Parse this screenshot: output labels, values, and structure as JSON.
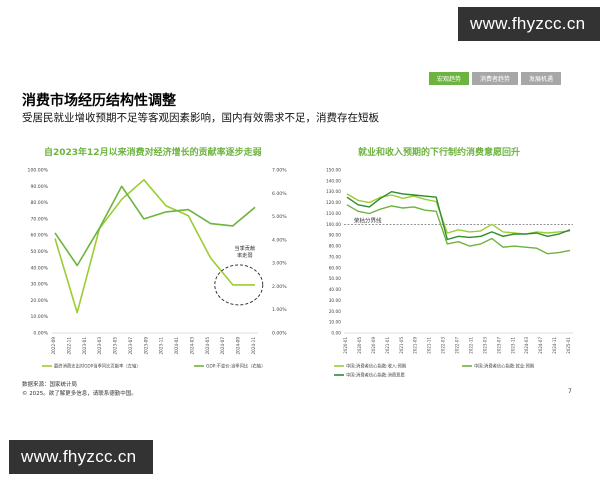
{
  "watermark": {
    "text": "www.fhyzcc.cn"
  },
  "tabs": [
    {
      "label": "宏观趋势",
      "active": true
    },
    {
      "label": "消费者趋势",
      "active": false
    },
    {
      "label": "发展机遇",
      "active": false
    }
  ],
  "header": {
    "title": "消费市场经历结构性调整",
    "subtitle": "受居民就业增收预期不足等客观因素影响，国内有效需求不足，消费存在短板"
  },
  "footer": {
    "source": "数据来源：国家统计局",
    "copyright": "© 2025。欲了解更多信息，请联系德勤中国。",
    "page": "7"
  },
  "colors": {
    "light_green": "#9acd32",
    "mid_green": "#6db33f",
    "dark_green": "#2e8b2e",
    "axis": "#bbbbbb",
    "text": "#444444"
  },
  "chart_data": [
    {
      "type": "line",
      "title": "自2023年12月以来消费对经济增长的贡献率逐步走弱",
      "x": [
        "2022-09",
        "2022-12",
        "2023-03",
        "2023-06",
        "2023-09",
        "2023-12",
        "2024-03",
        "2024-06",
        "2024-09",
        "2024-12"
      ],
      "x_tick_labels": [
        "2022-09",
        "2022-11",
        "2023-01",
        "2023-03",
        "2023-05",
        "2023-07",
        "2023-09",
        "2023-11",
        "2024-01",
        "2024-03",
        "2024-05",
        "2024-07",
        "2024-09",
        "2024-11"
      ],
      "y_left_ticks": [
        "0.00%",
        "10.00%",
        "20.00%",
        "30.00%",
        "40.00%",
        "50.00%",
        "60.00%",
        "70.00%",
        "80.00%",
        "90.00%",
        "100.00%"
      ],
      "y_right_ticks": [
        "0.00%",
        "1.00%",
        "2.00%",
        "3.00%",
        "4.00%",
        "5.00%",
        "6.00%",
        "7.00%"
      ],
      "ylim_left": [
        0,
        100
      ],
      "ylim_right": [
        0,
        7
      ],
      "series": [
        {
          "name": "最终消费支出对GDP当季同比贡献率（左轴）",
          "axis": "left",
          "color": "#9acd32",
          "values": [
            58.0,
            12.5,
            64.0,
            82.0,
            94.0,
            78.0,
            72.0,
            46.0,
            29.5,
            29.5
          ]
        },
        {
          "name": "GDP:不变价:当季同比（右轴）",
          "axis": "right",
          "color": "#6db33f",
          "values": [
            4.3,
            2.9,
            4.5,
            6.3,
            4.9,
            5.2,
            5.3,
            4.7,
            4.6,
            5.4
          ]
        }
      ],
      "annotation": "当季贡献\n率走弱"
    },
    {
      "type": "line",
      "title": "就业和收入预期的下行制约消费意愿回升",
      "x": [
        "2020-01",
        "2020-04",
        "2020-07",
        "2020-10",
        "2021-01",
        "2021-04",
        "2021-07",
        "2021-10",
        "2022-01",
        "2022-04",
        "2022-07",
        "2022-10",
        "2023-01",
        "2023-04",
        "2023-07",
        "2023-10",
        "2024-01",
        "2024-04",
        "2024-07",
        "2024-10",
        "2025-01"
      ],
      "x_tick_labels": [
        "2020-01",
        "2020-05",
        "2020-09",
        "2021-01",
        "2021-05",
        "2021-09",
        "2021-11",
        "2022-03",
        "2022-07",
        "2022-11",
        "2023-03",
        "2023-07",
        "2023-11",
        "2024-03",
        "2024-07",
        "2024-11",
        "2025-01"
      ],
      "y_ticks": [
        "0.00",
        "10.00",
        "20.00",
        "30.00",
        "40.00",
        "50.00",
        "60.00",
        "70.00",
        "80.00",
        "90.00",
        "100.00",
        "110.00",
        "120.00",
        "130.00",
        "140.00",
        "150.00"
      ],
      "ylim": [
        0,
        150
      ],
      "reference_line": {
        "value": 100,
        "label": "荣枯分界线"
      },
      "series": [
        {
          "name": "中国:消费者信心指数:收入:预期",
          "color": "#9acd32",
          "values": [
            128,
            122,
            120,
            125,
            127,
            124,
            126,
            123,
            121,
            92,
            95,
            93,
            94,
            100,
            93,
            92,
            91,
            93,
            92,
            93,
            94
          ]
        },
        {
          "name": "中国:消费者信心指数:就业:预期",
          "color": "#6db33f",
          "values": [
            118,
            112,
            110,
            114,
            117,
            115,
            116,
            113,
            112,
            82,
            84,
            80,
            82,
            87,
            79,
            80,
            79,
            78,
            73,
            74,
            76
          ]
        },
        {
          "name": "中国:消费者信心指数:消费意愿",
          "color": "#2e8b2e",
          "values": [
            125,
            118,
            116,
            124,
            130,
            128,
            127,
            126,
            125,
            86,
            89,
            88,
            89,
            93,
            89,
            91,
            91,
            92,
            89,
            91,
            95
          ]
        }
      ]
    }
  ]
}
